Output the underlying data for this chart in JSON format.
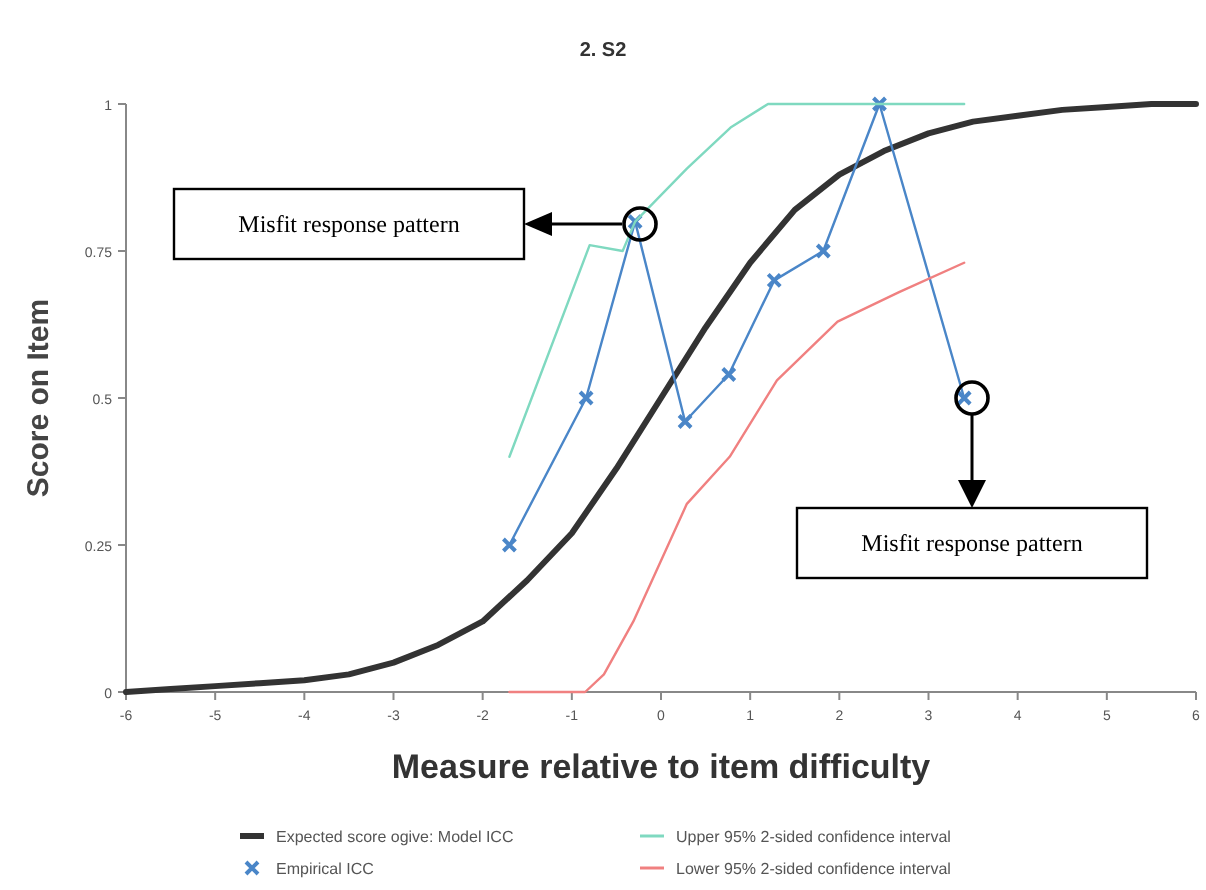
{
  "chart_data": {
    "type": "line",
    "title": "2. S2",
    "xlabel": "Measure relative to item difficulty",
    "ylabel": "Score on Item",
    "xlim": [
      -6,
      6
    ],
    "xticks": [
      -6,
      -5,
      -4,
      -3,
      -2,
      -1,
      0,
      1,
      2,
      3,
      4,
      5,
      6
    ],
    "ylim": [
      0,
      1
    ],
    "yticks": [
      0,
      0.25,
      0.5,
      0.75,
      1
    ],
    "grid": false,
    "legend": "bottom",
    "line_style": "solid",
    "series": [
      {
        "name": "Expected score ogive: Model ICC",
        "color": "#333333",
        "marker": "none",
        "x": [
          -6,
          -5.5,
          -5,
          -4.5,
          -4,
          -3.5,
          -3,
          -2.5,
          -2,
          -1.5,
          -1,
          -0.5,
          0,
          0.5,
          1,
          1.5,
          2,
          2.5,
          3,
          3.5,
          4,
          4.5,
          5,
          5.5,
          6
        ],
        "values": [
          0.0,
          0.005,
          0.01,
          0.015,
          0.02,
          0.03,
          0.05,
          0.08,
          0.12,
          0.19,
          0.27,
          0.38,
          0.5,
          0.62,
          0.73,
          0.82,
          0.88,
          0.92,
          0.95,
          0.97,
          0.98,
          0.99,
          0.995,
          1.0,
          1.0
        ]
      },
      {
        "name": "Empirical ICC",
        "color": "#4a86c8",
        "marker": "cross",
        "x": [
          -1.7,
          -0.84,
          -0.29,
          0.27,
          0.76,
          1.27,
          1.82,
          2.45,
          3.4
        ],
        "values": [
          0.25,
          0.5,
          0.8,
          0.46,
          0.54,
          0.7,
          0.75,
          1.0,
          0.5
        ]
      },
      {
        "name": "Upper 95% 2-sided confidence interval",
        "color": "#7fd9c0",
        "marker": "none",
        "x": [
          -1.7,
          -0.8,
          -0.43,
          -0.29,
          0.29,
          0.78,
          1.2,
          2,
          3.4
        ],
        "values": [
          0.4,
          0.76,
          0.75,
          0.8,
          0.89,
          0.96,
          1.0,
          1.0,
          1.0
        ]
      },
      {
        "name": "Lower 95% 2-sided confidence interval",
        "color": "#f08080",
        "marker": "none",
        "x": [
          -1.7,
          -0.85,
          -0.64,
          -0.31,
          0.29,
          0.77,
          1.3,
          1.98,
          2.67,
          3.4
        ],
        "values": [
          0,
          0,
          0.03,
          0.12,
          0.32,
          0.4,
          0.53,
          0.63,
          0.68,
          0.73
        ]
      }
    ],
    "annotations": [
      "Misfit response pattern",
      "Misfit response pattern"
    ]
  }
}
